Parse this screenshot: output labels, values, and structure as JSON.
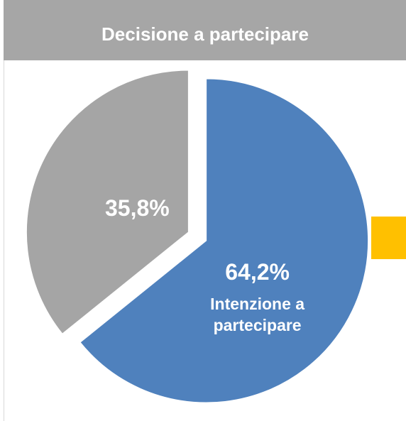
{
  "chart_data": {
    "type": "pie",
    "title": "Decisione a partecipare",
    "categories": [
      "Intenzione a partecipare",
      null
    ],
    "values": [
      64.2,
      35.8
    ],
    "value_labels": [
      "64,2%",
      "35,8%"
    ],
    "colors": [
      "#4f81bd",
      "#a5a5a5"
    ]
  }
}
